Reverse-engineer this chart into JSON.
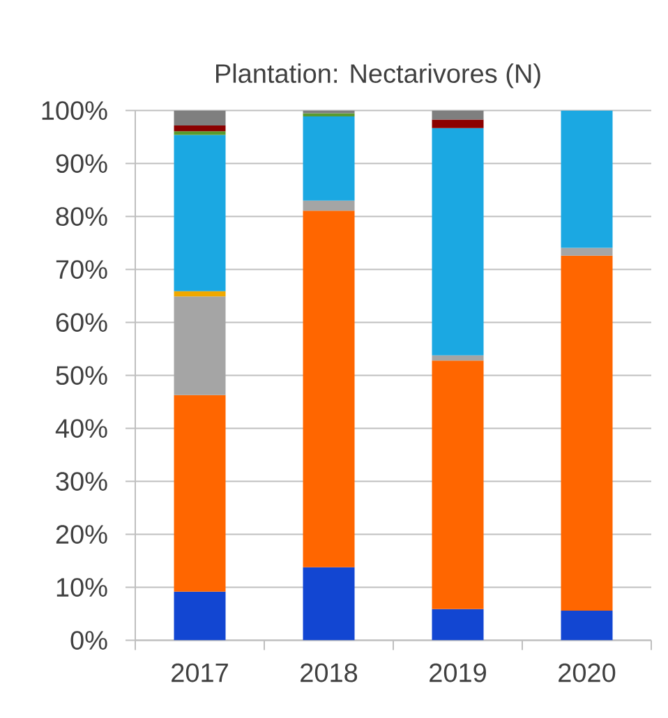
{
  "chart_data": {
    "type": "bar",
    "stacked": true,
    "title": "Plantation: Nectarivores (N)",
    "categories": [
      "2017",
      "2018",
      "2019",
      "2020"
    ],
    "series": [
      {
        "color": "#1246d2",
        "values": [
          9.2,
          13.8,
          5.9,
          5.6
        ]
      },
      {
        "color": "#ff6600",
        "values": [
          37.1,
          67.3,
          46.9,
          67.0
        ]
      },
      {
        "color": "#a5a5a5",
        "values": [
          18.6,
          1.9,
          1.0,
          1.5
        ]
      },
      {
        "color": "#f0a800",
        "values": [
          1.0,
          null,
          null,
          null
        ]
      },
      {
        "color": "#1ba8e2",
        "values": [
          29.5,
          15.9,
          42.9,
          25.9
        ]
      },
      {
        "color": "#5a9a2f",
        "values": [
          0.7,
          0.6,
          null,
          null
        ]
      },
      {
        "color": "#8b0000",
        "values": [
          1.1,
          null,
          1.6,
          null
        ]
      },
      {
        "color": "#7f7f7f",
        "values": [
          2.8,
          0.5,
          1.7,
          null
        ]
      }
    ],
    "ylim": [
      0,
      100
    ],
    "yticks": [
      {
        "value": 0,
        "label": "0%"
      },
      {
        "value": 10,
        "label": "10%"
      },
      {
        "value": 20,
        "label": "20%"
      },
      {
        "value": 30,
        "label": "30%"
      },
      {
        "value": 40,
        "label": "40%"
      },
      {
        "value": 50,
        "label": "50%"
      },
      {
        "value": 60,
        "label": "60%"
      },
      {
        "value": 70,
        "label": "70%"
      },
      {
        "value": 80,
        "label": "80%"
      },
      {
        "value": 90,
        "label": "90%"
      },
      {
        "value": 100,
        "label": "100%"
      }
    ],
    "grid": "y"
  }
}
